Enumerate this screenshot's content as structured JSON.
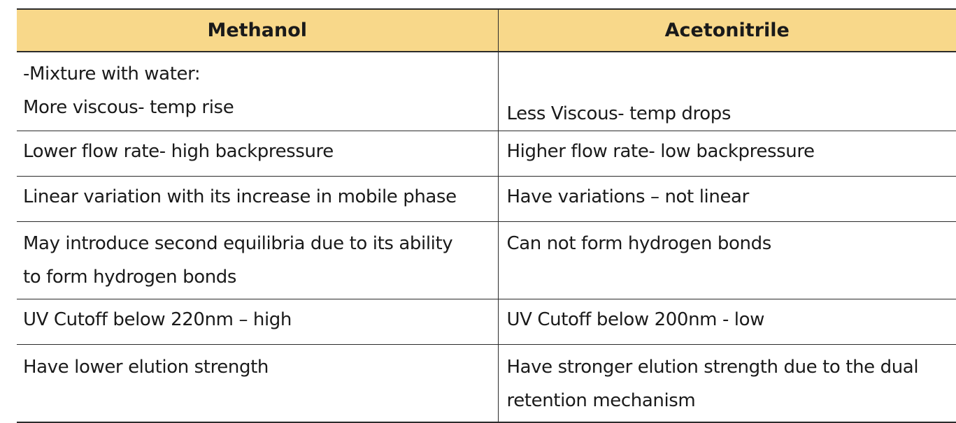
{
  "table": {
    "headers": [
      "Methanol",
      "Acetonitrile"
    ],
    "rows": [
      {
        "methanol": [
          "-Mixture with water:",
          "More viscous- temp rise"
        ],
        "acetonitrile": [
          "Less Viscous- temp drops"
        ]
      },
      {
        "methanol": [
          "Lower flow rate- high backpressure"
        ],
        "acetonitrile": [
          "Higher flow rate- low backpressure"
        ]
      },
      {
        "methanol": [
          "Linear variation with its increase in mobile phase"
        ],
        "acetonitrile": [
          "Have variations – not linear"
        ]
      },
      {
        "methanol": [
          "May introduce second equilibria due to its ability",
          "to form hydrogen bonds"
        ],
        "acetonitrile": [
          "Can not form hydrogen bonds"
        ]
      },
      {
        "methanol": [
          "UV Cutoff below 220nm – high"
        ],
        "acetonitrile": [
          "UV Cutoff below 200nm - low"
        ]
      },
      {
        "methanol": [
          "Have lower elution strength"
        ],
        "acetonitrile": [
          "Have stronger elution strength due to the dual",
          "retention mechanism"
        ]
      }
    ]
  }
}
